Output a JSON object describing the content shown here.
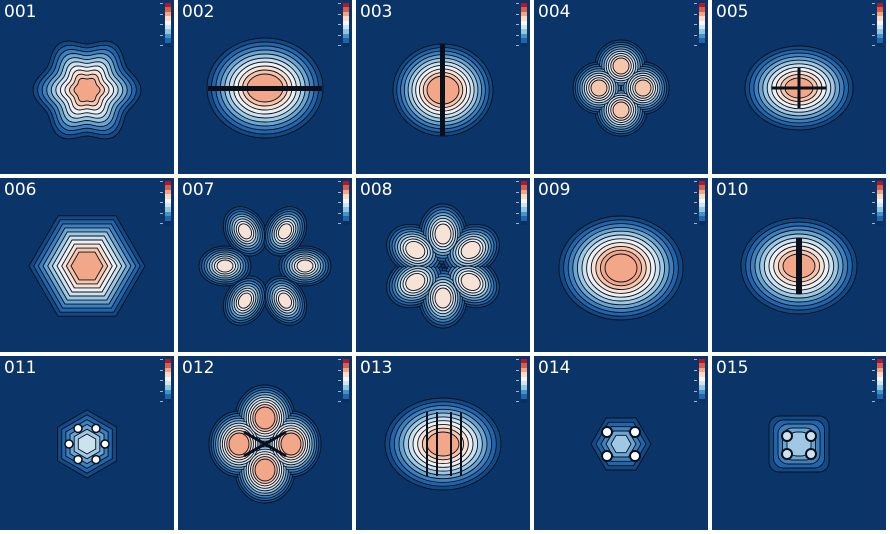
{
  "panels": [
    {
      "label": "001",
      "shape": "rosette6"
    },
    {
      "label": "002",
      "shape": "stack-h"
    },
    {
      "label": "003",
      "shape": "stack-v"
    },
    {
      "label": "004",
      "shape": "clover4"
    },
    {
      "label": "005",
      "shape": "butterfly"
    },
    {
      "label": "006",
      "shape": "hexring"
    },
    {
      "label": "007",
      "shape": "petals6"
    },
    {
      "label": "008",
      "shape": "star6"
    },
    {
      "label": "009",
      "shape": "lens"
    },
    {
      "label": "010",
      "shape": "split-v"
    },
    {
      "label": "011",
      "shape": "hexdots"
    },
    {
      "label": "012",
      "shape": "clover4-diag"
    },
    {
      "label": "013",
      "shape": "bands-v"
    },
    {
      "label": "014",
      "shape": "hexdots-sparse"
    },
    {
      "label": "015",
      "shape": "dots4"
    }
  ],
  "colors": {
    "background": "#0b3468",
    "colorbar": [
      "#b2182b",
      "#d6604d",
      "#f4a582",
      "#fddbc7",
      "#f7f7f7",
      "#d1e5f0",
      "#92c5de",
      "#4393c3",
      "#2166ac",
      "#053061"
    ]
  }
}
